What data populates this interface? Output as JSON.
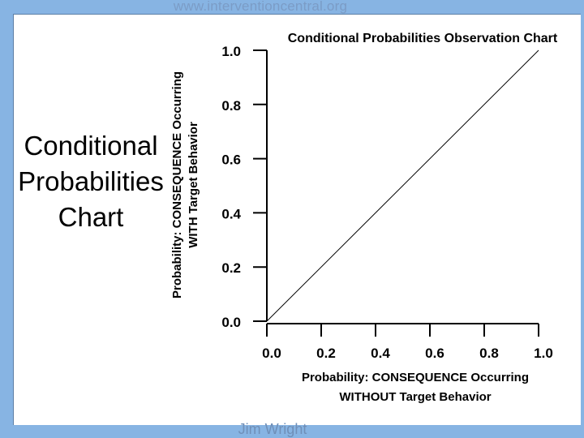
{
  "header": {
    "url": "www.interventioncentral.org"
  },
  "footer": {
    "author": "Jim Wright"
  },
  "slide_title": {
    "line1": "Conditional",
    "line2": "Probabilities",
    "line3": "Chart"
  },
  "chart_data": {
    "type": "line",
    "title": "Conditional Probabilities Observation Chart",
    "ylabel_line1": "Probability: CONSEQUENCE Occurring",
    "ylabel_line2": "WITH Target Behavior",
    "xlabel_line1": "Probability: CONSEQUENCE Occurring",
    "xlabel_line2": "WITHOUT Target Behavior",
    "xlim": [
      0,
      1
    ],
    "ylim": [
      0,
      1
    ],
    "x_ticks": [
      "0.0",
      "0.2",
      "0.4",
      "0.6",
      "0.8",
      "1.0"
    ],
    "y_ticks": [
      "0.0",
      "0.2",
      "0.4",
      "0.6",
      "0.8",
      "1.0"
    ],
    "grid": false,
    "series": [
      {
        "x": [
          0,
          1
        ],
        "y": [
          0,
          1
        ],
        "color": "#000000"
      }
    ]
  }
}
